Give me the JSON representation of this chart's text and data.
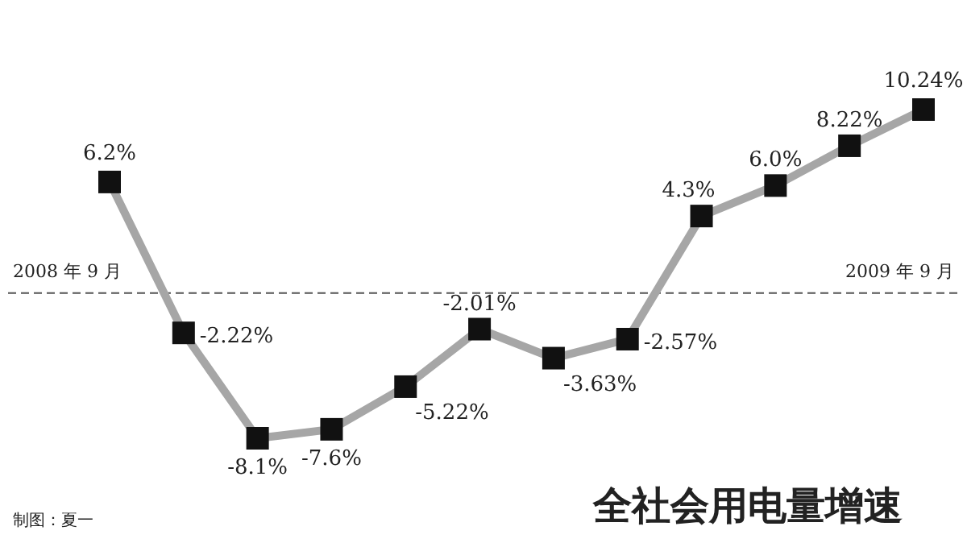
{
  "chart_data": {
    "type": "line",
    "title": "全社会用电量增速",
    "categories": [
      null,
      null,
      null,
      null,
      null,
      null,
      null,
      null,
      null,
      null,
      null,
      null
    ],
    "series": [
      {
        "color": "#a6a6a6",
        "values": [
          6.2,
          -2.22,
          -8.1,
          -7.6,
          -5.22,
          -2.01,
          -3.63,
          -2.57,
          4.3,
          6.0,
          8.22,
          10.24
        ],
        "value_labels": [
          "6.2%",
          "-2.22%",
          "-8.1%",
          "-7.6%",
          "-5.22%",
          "-2.01%",
          "-3.63%",
          "-2.57%",
          "4.3%",
          "6.0%",
          "8.22%",
          "10.24%"
        ]
      }
    ],
    "marker": "square",
    "line_style": "solid",
    "ref_lines": [
      {
        "axis": "y",
        "value": 0,
        "color": "#555555",
        "line_style": "dashed"
      }
    ],
    "annotations": [
      "2008 年 9 月",
      "2009 年 9 月",
      "制图：夏一"
    ]
  }
}
